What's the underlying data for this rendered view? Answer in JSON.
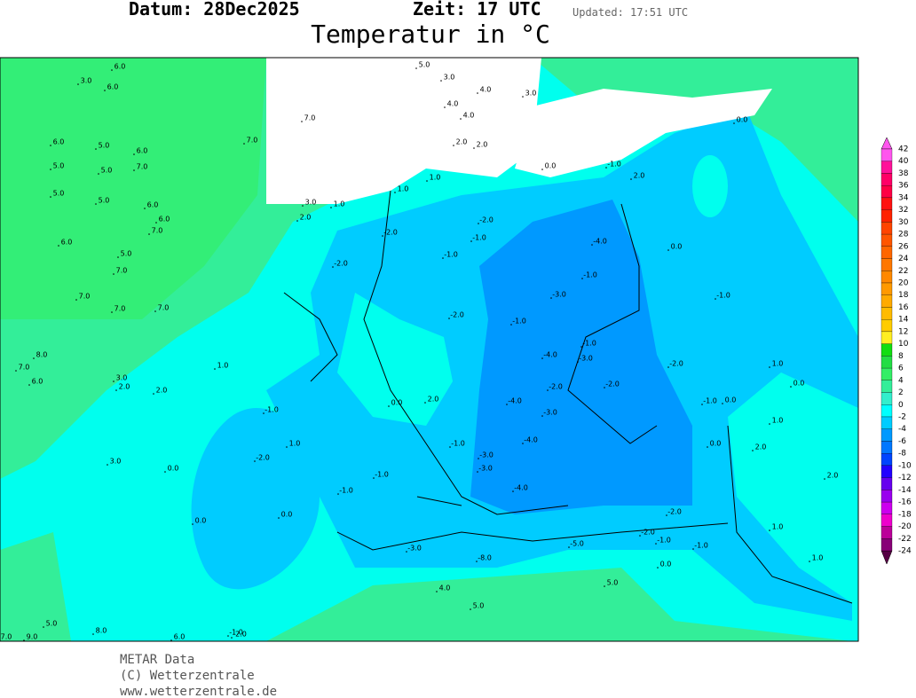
{
  "header": {
    "date": "Datum: 28Dec2025",
    "time": "Zeit: 17 UTC",
    "updated": "Updated: 17:51 UTC",
    "title": "Temperatur in °C"
  },
  "footer": {
    "source": "METAR Data",
    "copyright": "(C) Wetterzentrale",
    "url": "www.wetterzentrale.de"
  },
  "legend": [
    {
      "label": "42",
      "color": "#ff55ee"
    },
    {
      "label": "40",
      "color": "#ff1199"
    },
    {
      "label": "38",
      "color": "#ff0066"
    },
    {
      "label": "36",
      "color": "#ff0044"
    },
    {
      "label": "34",
      "color": "#ff1111"
    },
    {
      "label": "32",
      "color": "#ff2200"
    },
    {
      "label": "30",
      "color": "#ff4400"
    },
    {
      "label": "28",
      "color": "#ff5500"
    },
    {
      "label": "26",
      "color": "#ff6600"
    },
    {
      "label": "24",
      "color": "#ff7700"
    },
    {
      "label": "22",
      "color": "#ff8800"
    },
    {
      "label": "20",
      "color": "#ff9900"
    },
    {
      "label": "18",
      "color": "#ffaa00"
    },
    {
      "label": "16",
      "color": "#ffbb00"
    },
    {
      "label": "14",
      "color": "#ffcc00"
    },
    {
      "label": "12",
      "color": "#ffee22"
    },
    {
      "label": "10",
      "color": "#11dd11"
    },
    {
      "label": "8",
      "color": "#22dd44"
    },
    {
      "label": "6",
      "color": "#33ee66"
    },
    {
      "label": "4",
      "color": "#33ee99"
    },
    {
      "label": "2",
      "color": "#33eecc"
    },
    {
      "label": "0",
      "color": "#00ffff"
    },
    {
      "label": "-2",
      "color": "#00ccff"
    },
    {
      "label": "-4",
      "color": "#0099ff"
    },
    {
      "label": "-6",
      "color": "#0077ff"
    },
    {
      "label": "-8",
      "color": "#0044ff"
    },
    {
      "label": "-10",
      "color": "#2200ff"
    },
    {
      "label": "-12",
      "color": "#6600ee"
    },
    {
      "label": "-14",
      "color": "#9900ee"
    },
    {
      "label": "-16",
      "color": "#cc00ee"
    },
    {
      "label": "-18",
      "color": "#ee00cc"
    },
    {
      "label": "-20",
      "color": "#bb0099"
    },
    {
      "label": "-22",
      "color": "#880077"
    },
    {
      "label": "-24",
      "color": "#550044"
    }
  ],
  "stations": [
    "6.0",
    "3.0",
    "6.0",
    "7.0",
    "7.0",
    "6.0",
    "5.0",
    "5.0",
    "5.0",
    "6.0",
    "7.0",
    "5.0",
    "5.0",
    "6.0",
    "6.0",
    "7.0",
    "6.0",
    "5.0",
    "7.0",
    "7.0",
    "7.0",
    "7.0",
    "3.0",
    "2.0",
    "1.0",
    "5.0",
    "3.0",
    "4.0",
    "4.0",
    "4.0",
    "3.0",
    "2.0",
    "2.0",
    "0.0",
    "1.0",
    "1.0",
    "-1.0",
    "-2.0",
    "-2.0",
    "2.0",
    "0.0",
    "-1.0",
    "-2.0",
    "-1.0",
    "0.0",
    "-1.0",
    "-3.0",
    "-1.0",
    "-2.0",
    "-1.0",
    "-4.0",
    "-1.0",
    "-3.0",
    "-4.0",
    "-2.0",
    "-2.0",
    "-4.0",
    "-3.0",
    "-2.0",
    "-3.0",
    "-1.0",
    "-1.0",
    "-4.0",
    "0.0",
    "-3.0",
    "-4.0",
    "-1.0",
    "0.0",
    "1.0",
    "1.0",
    "-2.0",
    "-2.0",
    "0.0",
    "-1.0",
    "8.0",
    "7.0",
    "6.0",
    "3.0",
    "2.0",
    "2.0",
    "1.0",
    "3.0",
    "0.0",
    "1.0",
    "0.0",
    "-1.0",
    "-1.0",
    "2.0",
    "5.0",
    "7.0",
    "5.0",
    "6.0",
    "0.0",
    "-2.0",
    "-2.0",
    "-5.0",
    "-8.0",
    "-3.0",
    "4.0",
    "9.0",
    "8.0",
    "5.0",
    "-1.0",
    "1.0",
    "2.0",
    "0.0",
    "-1.0",
    "1.0",
    "0.0",
    "2.0"
  ]
}
